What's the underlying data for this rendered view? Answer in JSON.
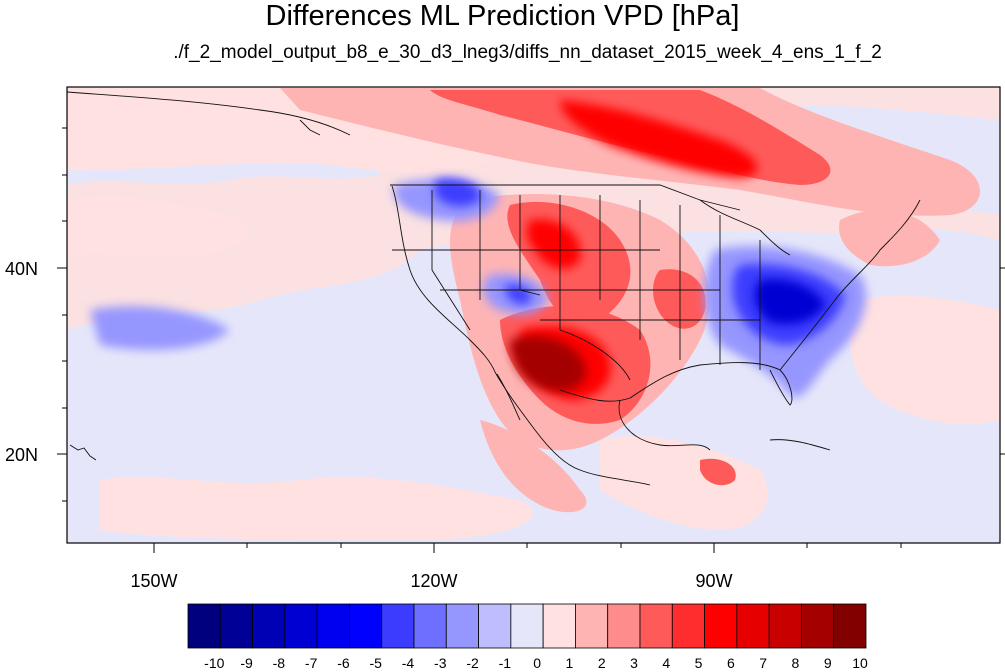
{
  "title": "Differences ML Prediction VPD [hPa]",
  "subtitle": "./f_2_model_output_b8_e_30_d3_lneg3/diffs_nn_dataset_2015_week_4_ens_1_f_2",
  "map": {
    "lat_labels": [
      "40N",
      "20N"
    ],
    "lon_labels": [
      "150W",
      "120W",
      "90W"
    ],
    "background_color": "#fbe1e1"
  },
  "colorbar": {
    "labels": [
      "-10",
      "-9",
      "-8",
      "-7",
      "-6",
      "-5",
      "-4",
      "-3",
      "-2",
      "-1",
      "0",
      "1",
      "2",
      "3",
      "4",
      "5",
      "6",
      "7",
      "8",
      "9",
      "10"
    ],
    "colors": [
      "#00007e",
      "#000096",
      "#0000b4",
      "#0000d2",
      "#0000f0",
      "#0000ff",
      "#3c3cff",
      "#6e6eff",
      "#9696ff",
      "#bebeff",
      "#e6e6fa",
      "#ffe1e1",
      "#ffb4b4",
      "#ff8c8c",
      "#ff5a5a",
      "#ff2d2d",
      "#ff0000",
      "#e60000",
      "#c80000",
      "#a50000",
      "#820000"
    ]
  }
}
